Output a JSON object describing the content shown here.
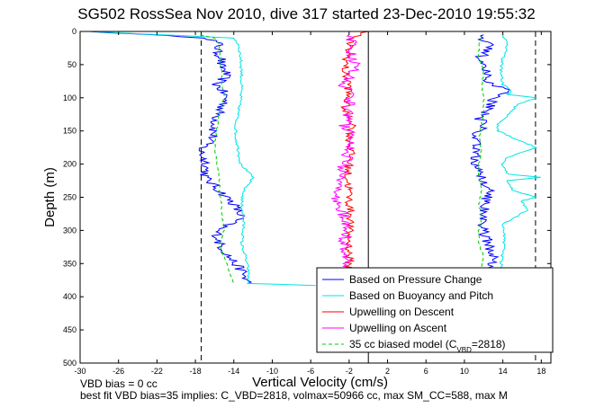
{
  "chart_data": {
    "type": "line",
    "title": "SG502 RossSea Nov 2010, dive 317 started 23-Dec-2010 19:55:32",
    "xlabel": "Vertical Velocity (cm/s)",
    "ylabel": "Depth (m)",
    "xlim": [
      -30,
      19
    ],
    "ylim": [
      500,
      0
    ],
    "x_ticks": [
      -30,
      -26,
      -22,
      -18,
      -14,
      -10,
      -6,
      -2,
      2,
      6,
      10,
      14,
      18
    ],
    "y_ticks": [
      0,
      50,
      100,
      150,
      200,
      250,
      300,
      350,
      400,
      450,
      500
    ],
    "grid": false,
    "legend_position": "bottom-right",
    "reference_lines": [
      {
        "x": -17.4,
        "style": "dashed"
      },
      {
        "x": 0,
        "style": "solid"
      },
      {
        "x": 17.4,
        "style": "dashed"
      }
    ],
    "series": [
      {
        "name": "Based on Pressure Change",
        "color": "#0000ff",
        "style": "solid",
        "descent": {
          "depth": [
            0,
            10,
            20,
            30,
            40,
            50,
            60,
            70,
            80,
            90,
            100,
            110,
            120,
            140,
            160,
            180,
            200,
            220,
            240,
            260,
            280,
            300,
            320,
            340,
            360,
            380
          ],
          "velocity": [
            -29,
            -16.5,
            -15.5,
            -15.8,
            -15.2,
            -15.5,
            -14.8,
            -15.0,
            -15.8,
            -15.2,
            -14.8,
            -15.0,
            -15.5,
            -16.0,
            -16.2,
            -17.5,
            -16.8,
            -17.0,
            -15.5,
            -14.0,
            -13.2,
            -15.8,
            -15.5,
            -14.5,
            -13.2,
            -12.5
          ]
        },
        "ascent": {
          "depth": [
            380,
            360,
            340,
            320,
            300,
            280,
            260,
            240,
            220,
            200,
            180,
            160,
            150,
            140,
            130,
            120,
            100,
            90,
            80,
            70,
            60,
            50,
            40,
            30,
            20,
            10,
            5
          ],
          "velocity": [
            13.0,
            12.5,
            13.0,
            12.5,
            12.0,
            12.0,
            12.2,
            12.5,
            12.0,
            11.0,
            11.5,
            11.2,
            11.5,
            12.0,
            11.5,
            12.5,
            13.0,
            14.5,
            13.0,
            12.0,
            12.5,
            12.0,
            11.5,
            12.5,
            12.5,
            11.8,
            12.0
          ]
        }
      },
      {
        "name": "Based on Buoyancy and Pitch",
        "color": "#00e5e5",
        "style": "solid",
        "descent": {
          "depth": [
            0,
            10,
            20,
            40,
            60,
            80,
            100,
            120,
            140,
            160,
            180,
            200,
            220,
            240,
            260,
            280,
            300,
            320,
            340,
            360,
            380,
            383
          ],
          "velocity": [
            -29,
            -14.0,
            -13.5,
            -13.3,
            -13.2,
            -13.2,
            -13.3,
            -13.5,
            -13.8,
            -13.8,
            -13.5,
            -13.3,
            -12.0,
            -13.0,
            -13.2,
            -13.0,
            -13.0,
            -13.2,
            -12.8,
            -12.5,
            -12.5,
            -5.5
          ]
        },
        "ascent": {
          "depth": [
            383,
            370,
            350,
            330,
            310,
            290,
            270,
            255,
            250,
            240,
            225,
            220,
            215,
            200,
            190,
            175,
            160,
            150,
            140,
            120,
            110,
            100,
            95,
            90,
            80,
            60,
            40,
            20,
            5
          ],
          "velocity": [
            14.5,
            14.0,
            13.8,
            14.0,
            14.2,
            14.0,
            16.5,
            16.0,
            17.5,
            15.0,
            14.5,
            18.0,
            14.5,
            14.0,
            14.5,
            17.5,
            15.0,
            13.5,
            13.5,
            15.0,
            15.5,
            17.5,
            14.5,
            15.0,
            14.0,
            13.8,
            14.0,
            14.5,
            14.0
          ]
        }
      },
      {
        "name": "Upwelling on Descent",
        "color": "#ff0000",
        "style": "solid",
        "descent": {
          "depth": [
            0,
            10,
            20,
            40,
            60,
            80,
            100,
            120,
            140,
            160,
            180,
            200,
            220,
            240,
            260,
            280,
            300,
            320,
            340,
            360
          ],
          "velocity": [
            0,
            -1.8,
            -2.0,
            -2.2,
            -2.5,
            -2.0,
            -2.2,
            -2.5,
            -1.5,
            -2.0,
            -1.8,
            -2.0,
            -2.2,
            -2.0,
            -2.0,
            -1.8,
            -2.0,
            -2.0,
            -2.0,
            -2.0
          ]
        }
      },
      {
        "name": "Upwelling on Ascent",
        "color": "#ff00ff",
        "style": "solid",
        "ascent": {
          "depth": [
            360,
            340,
            320,
            300,
            280,
            260,
            240,
            220,
            200,
            180,
            160,
            140,
            120,
            100,
            80,
            60,
            40,
            20,
            5
          ],
          "velocity": [
            -2.0,
            -2.5,
            -2.5,
            -2.3,
            -2.5,
            -3.0,
            -3.5,
            -3.0,
            -2.5,
            -2.0,
            -2.0,
            -2.5,
            -2.0,
            -2.0,
            -2.5,
            -1.5,
            -1.5,
            -1.8,
            -2.0
          ]
        }
      },
      {
        "name": "35 cc biased model (C_VBD=2818)",
        "color": "#00cc00",
        "style": "dashed",
        "descent": {
          "depth": [
            5,
            10,
            20,
            40,
            60,
            80,
            100,
            120,
            150,
            170,
            200,
            220,
            240,
            260,
            280,
            300,
            320,
            340,
            360,
            380
          ],
          "velocity": [
            -17.5,
            -16.0,
            -15.5,
            -15.5,
            -15.3,
            -15.2,
            -15.0,
            -15.5,
            -15.8,
            -16.0,
            -15.8,
            -15.5,
            -15.5,
            -15.3,
            -15.2,
            -15.0,
            -15.5,
            -15.0,
            -14.5,
            -14.0
          ]
        },
        "ascent": {
          "depth": [
            380,
            360,
            340,
            320,
            300,
            280,
            260,
            240,
            220,
            200,
            180,
            160,
            140,
            120,
            100,
            80,
            60,
            40,
            20,
            5
          ],
          "velocity": [
            12.0,
            11.8,
            12.0,
            11.5,
            11.5,
            11.8,
            11.5,
            11.8,
            11.5,
            11.5,
            11.8,
            11.5,
            11.8,
            12.0,
            12.0,
            11.8,
            12.0,
            11.5,
            11.5,
            11.8
          ]
        }
      }
    ]
  },
  "footer": {
    "vbd_bias": "VBD bias = 0 cc",
    "best_fit": "best fit VBD bias=35 implies: C_VBD=2818, volmax=50966 cc, max SM_CC=588, max M"
  }
}
